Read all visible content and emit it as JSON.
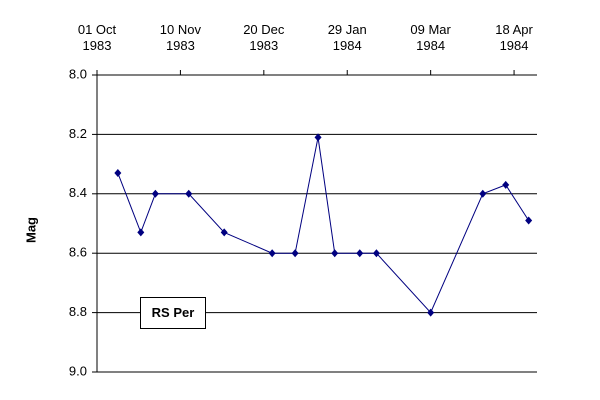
{
  "chart_data": {
    "type": "line",
    "y_label": "Mag",
    "annotation": "RS Per",
    "x": [
      "1983-10-11",
      "1983-10-22",
      "1983-10-29",
      "1983-11-14",
      "1983-12-01",
      "1983-12-24",
      "1984-01-04",
      "1984-01-15",
      "1984-01-23",
      "1984-02-04",
      "1984-02-12",
      "1984-03-09",
      "1984-04-03",
      "1984-04-14",
      "1984-04-25"
    ],
    "series": [
      {
        "name": "RS Per",
        "color": "#000080",
        "values": [
          8.33,
          8.53,
          8.4,
          8.4,
          8.53,
          8.6,
          8.6,
          8.21,
          8.6,
          8.6,
          8.6,
          8.8,
          8.4,
          8.37,
          8.49
        ]
      }
    ],
    "xlim": [
      "1983-10-01",
      "1984-04-29"
    ],
    "xticks": [
      {
        "value": "1983-10-01",
        "label": "01 Oct\n1983"
      },
      {
        "value": "1983-11-10",
        "label": "10 Nov\n1983"
      },
      {
        "value": "1983-12-20",
        "label": "20 Dec\n1983"
      },
      {
        "value": "1984-01-29",
        "label": "29 Jan\n1984"
      },
      {
        "value": "1984-03-09",
        "label": "09 Mar\n1984"
      },
      {
        "value": "1984-04-18",
        "label": "18 Apr\n1984"
      }
    ],
    "ylim": [
      8,
      9
    ],
    "y_inverted": true,
    "yticks": [
      {
        "value": 8,
        "label": "8.0"
      },
      {
        "value": 8.2,
        "label": "8.2"
      },
      {
        "value": 8.4,
        "label": "8.4"
      },
      {
        "value": 8.6,
        "label": "8.6"
      },
      {
        "value": 8.8,
        "label": "8.8"
      },
      {
        "value": 9,
        "label": "9.0"
      }
    ],
    "grid": true
  }
}
